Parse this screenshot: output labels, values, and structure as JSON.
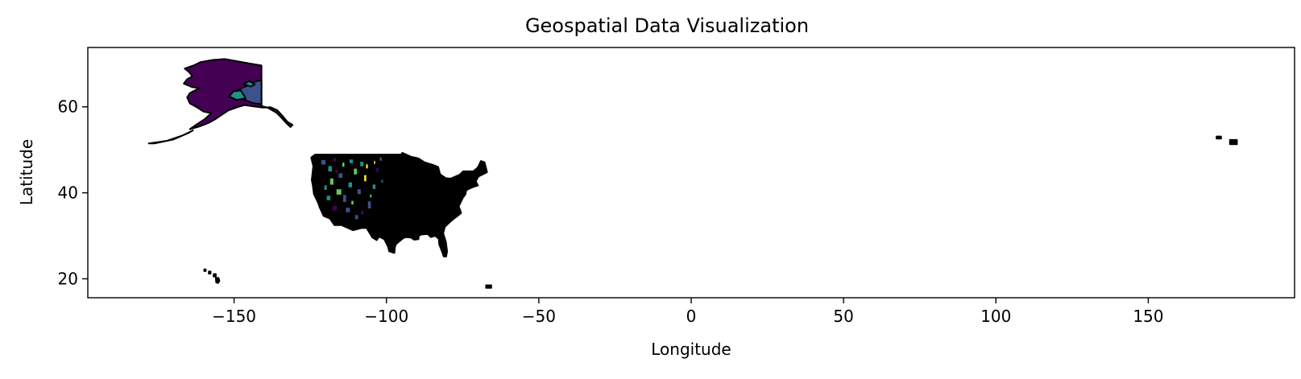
{
  "chart_data": {
    "type": "map",
    "title": "Geospatial Data Visualization",
    "xlabel": "Longitude",
    "ylabel": "Latitude",
    "xlim": [
      -198,
      198
    ],
    "ylim": [
      15.6,
      73.8
    ],
    "x_ticks": [
      -150,
      -100,
      -50,
      0,
      50,
      100,
      150
    ],
    "x_tick_labels": [
      "−150",
      "−100",
      "−50",
      "0",
      "50",
      "100",
      "150"
    ],
    "y_ticks": [
      20,
      40,
      60
    ],
    "y_tick_labels": [
      "20",
      "40",
      "60"
    ],
    "grid": false,
    "colormap": [
      "#440154",
      "#3b528b",
      "#21918c",
      "#5ec962",
      "#fde725"
    ],
    "edge_color": "#000000",
    "regions": [
      {
        "name": "Alaska",
        "fill": "#440154",
        "outline": [
          [
            -141,
            69.6
          ],
          [
            -141,
            60.2
          ],
          [
            -139,
            59.8
          ],
          [
            -136,
            58.6
          ],
          [
            -134.5,
            57.5
          ],
          [
            -133,
            56.3
          ],
          [
            -131.5,
            55.3
          ],
          [
            -130.8,
            55.8
          ],
          [
            -132.5,
            56.5
          ],
          [
            -134,
            57.8
          ],
          [
            -135.8,
            59.2
          ],
          [
            -138,
            59.9
          ],
          [
            -140.5,
            59.8
          ],
          [
            -143.5,
            60.1
          ],
          [
            -146.5,
            60.4
          ],
          [
            -149,
            59.9
          ],
          [
            -151.8,
            59.2
          ],
          [
            -153.5,
            58.4
          ],
          [
            -156,
            57.2
          ],
          [
            -158.5,
            56.2
          ],
          [
            -161.5,
            55.4
          ],
          [
            -164.5,
            54.8
          ],
          [
            -162.5,
            55.8
          ],
          [
            -159.5,
            57.2
          ],
          [
            -157.5,
            58.5
          ],
          [
            -160,
            58.9
          ],
          [
            -162,
            59.8
          ],
          [
            -164.5,
            60.8
          ],
          [
            -165.4,
            62.2
          ],
          [
            -164.5,
            63.2
          ],
          [
            -161.5,
            64.3
          ],
          [
            -163.8,
            64.6
          ],
          [
            -166.5,
            65.4
          ],
          [
            -165.4,
            66.4
          ],
          [
            -163.7,
            67.1
          ],
          [
            -164.8,
            68.1
          ],
          [
            -166.2,
            68.9
          ],
          [
            -163,
            69.7
          ],
          [
            -161,
            70.4
          ],
          [
            -157,
            70.9
          ],
          [
            -153,
            71.1
          ],
          [
            -149,
            70.6
          ],
          [
            -145,
            70.1
          ],
          [
            -141,
            69.6
          ]
        ]
      },
      {
        "name": "Alaska interior",
        "fill": "#3b528b",
        "outline": [
          [
            -141,
            66.2
          ],
          [
            -141,
            60.6
          ],
          [
            -144,
            60.9
          ],
          [
            -146.5,
            61.6
          ],
          [
            -149,
            62.2
          ],
          [
            -151,
            62.8
          ],
          [
            -148,
            64.2
          ],
          [
            -145,
            65.1
          ],
          [
            -143,
            65.9
          ],
          [
            -141,
            66.2
          ]
        ]
      },
      {
        "name": "Alaska region",
        "fill": "#21918c",
        "outline": [
          [
            -147.8,
            63.8
          ],
          [
            -146.2,
            62
          ],
          [
            -149.2,
            61.6
          ],
          [
            -151.6,
            62.4
          ],
          [
            -150.2,
            63.6
          ],
          [
            -147.8,
            63.8
          ]
        ]
      },
      {
        "name": "Alaska region",
        "fill": "#21918c",
        "outline": [
          [
            -145,
            66
          ],
          [
            -143.2,
            65.2
          ],
          [
            -144.6,
            64.7
          ],
          [
            -146.8,
            65.3
          ],
          [
            -145,
            66
          ]
        ]
      },
      {
        "name": "Aleutian chain",
        "fill": "#000000",
        "outline": [
          [
            -178,
            51.5
          ],
          [
            -172,
            52.1
          ],
          [
            -167,
            53.3
          ],
          [
            -163.5,
            54.5
          ],
          [
            -165,
            53.9
          ],
          [
            -170,
            52.4
          ],
          [
            -176,
            51.5
          ],
          [
            -178,
            51.5
          ]
        ]
      },
      {
        "name": "Contiguous US",
        "fill": "#000000",
        "outline": [
          [
            -123.4,
            48.9
          ],
          [
            -95.2,
            48.9
          ],
          [
            -94.8,
            49.3
          ],
          [
            -92,
            48.4
          ],
          [
            -89.5,
            48
          ],
          [
            -87.5,
            47.1
          ],
          [
            -84.7,
            46.5
          ],
          [
            -83,
            46
          ],
          [
            -82.4,
            44.3
          ],
          [
            -80.5,
            43.4
          ],
          [
            -79,
            43.3
          ],
          [
            -76,
            44.2
          ],
          [
            -74.8,
            45
          ],
          [
            -71.5,
            45
          ],
          [
            -70,
            45.9
          ],
          [
            -69,
            47.4
          ],
          [
            -67.8,
            47.1
          ],
          [
            -67,
            44.8
          ],
          [
            -69.8,
            43.8
          ],
          [
            -70.7,
            42.7
          ],
          [
            -70,
            41.7
          ],
          [
            -71.8,
            41.3
          ],
          [
            -73.8,
            40.6
          ],
          [
            -74.1,
            39.6
          ],
          [
            -74.9,
            38.9
          ],
          [
            -75.9,
            37.4
          ],
          [
            -76.3,
            36.9
          ],
          [
            -75.5,
            35.3
          ],
          [
            -76.5,
            34.7
          ],
          [
            -78,
            33.9
          ],
          [
            -79.2,
            33.2
          ],
          [
            -80.8,
            32.1
          ],
          [
            -81.4,
            30.6
          ],
          [
            -80.5,
            28.6
          ],
          [
            -80.1,
            26.4
          ],
          [
            -80.4,
            25.2
          ],
          [
            -81.2,
            25.2
          ],
          [
            -81.8,
            26.4
          ],
          [
            -82.7,
            28
          ],
          [
            -82.8,
            29.3
          ],
          [
            -84,
            30
          ],
          [
            -85.4,
            29.7
          ],
          [
            -86.5,
            30.4
          ],
          [
            -88.5,
            30.3
          ],
          [
            -89.4,
            30
          ],
          [
            -89.5,
            29.2
          ],
          [
            -90.9,
            29.1
          ],
          [
            -92,
            29.6
          ],
          [
            -93.8,
            29.7
          ],
          [
            -94.8,
            29.3
          ],
          [
            -96.8,
            28.1
          ],
          [
            -97.2,
            27.5
          ],
          [
            -97.4,
            26
          ],
          [
            -99.1,
            26.4
          ],
          [
            -99.5,
            27.5
          ],
          [
            -100.7,
            29.2
          ],
          [
            -102.4,
            29.8
          ],
          [
            -103.2,
            29
          ],
          [
            -104.6,
            29.6
          ],
          [
            -106.5,
            31.8
          ],
          [
            -108.2,
            31.8
          ],
          [
            -111,
            31.3
          ],
          [
            -114.8,
            32.5
          ],
          [
            -117.1,
            32.5
          ],
          [
            -118.5,
            34
          ],
          [
            -120.6,
            34.6
          ],
          [
            -121.9,
            36.6
          ],
          [
            -122.5,
            37.8
          ],
          [
            -123.8,
            39.7
          ],
          [
            -124.2,
            41.8
          ],
          [
            -124.5,
            43
          ],
          [
            -124,
            46.2
          ],
          [
            -124.7,
            48.2
          ],
          [
            -123.4,
            48.9
          ]
        ]
      },
      {
        "name": "Hawaii",
        "fill": "#000000",
        "outline": [
          [
            -159.8,
            22.2
          ],
          [
            -159.3,
            22.2
          ],
          [
            -159.3,
            21.8
          ],
          [
            -159.8,
            21.8
          ],
          [
            -159.8,
            22.2
          ]
        ]
      },
      {
        "name": "Hawaii",
        "fill": "#000000",
        "outline": [
          [
            -158.3,
            21.7
          ],
          [
            -157.7,
            21.7
          ],
          [
            -157.7,
            21.2
          ],
          [
            -158.3,
            21.2
          ],
          [
            -158.3,
            21.7
          ]
        ]
      },
      {
        "name": "Hawaii",
        "fill": "#000000",
        "outline": [
          [
            -156.7,
            21.1
          ],
          [
            -156,
            21.1
          ],
          [
            -156,
            20.5
          ],
          [
            -156.7,
            20.5
          ],
          [
            -156.7,
            21.1
          ]
        ]
      },
      {
        "name": "Hawaii",
        "fill": "#000000",
        "outline": [
          [
            -156,
            20.2
          ],
          [
            -155.1,
            20.2
          ],
          [
            -154.8,
            19.5
          ],
          [
            -155.3,
            19
          ],
          [
            -155.9,
            19.2
          ],
          [
            -156,
            20.2
          ]
        ]
      },
      {
        "name": "Puerto Rico",
        "fill": "#000000",
        "outline": [
          [
            -67.3,
            18.5
          ],
          [
            -65.6,
            18.5
          ],
          [
            -65.6,
            17.9
          ],
          [
            -67.3,
            17.9
          ],
          [
            -67.3,
            18.5
          ]
        ]
      },
      {
        "name": "Western Aleutians",
        "fill": "#000000",
        "outline": [
          [
            172.4,
            53.1
          ],
          [
            173.9,
            53.1
          ],
          [
            173.9,
            52.6
          ],
          [
            172.4,
            52.6
          ],
          [
            172.4,
            53.1
          ]
        ]
      },
      {
        "name": "Western Aleutians",
        "fill": "#000000",
        "outline": [
          [
            176.8,
            52.3
          ],
          [
            179.1,
            52.3
          ],
          [
            179.1,
            51.3
          ],
          [
            176.8,
            51.3
          ],
          [
            176.8,
            52.3
          ]
        ]
      }
    ],
    "cells": [
      {
        "lon": -121.5,
        "lat": 46.5,
        "w": 1.6,
        "h": 1.2,
        "fill": "#3b528b"
      },
      {
        "lon": -119.2,
        "lat": 44.9,
        "w": 1.4,
        "h": 1.4,
        "fill": "#21918c"
      },
      {
        "lon": -117.6,
        "lat": 47.2,
        "w": 1.2,
        "h": 1.0,
        "fill": "#440154"
      },
      {
        "lon": -115.8,
        "lat": 43.4,
        "w": 1.5,
        "h": 1.2,
        "fill": "#3b528b"
      },
      {
        "lon": -118.6,
        "lat": 41.8,
        "w": 1.3,
        "h": 1.6,
        "fill": "#5ec962"
      },
      {
        "lon": -116.5,
        "lat": 39.5,
        "w": 1.8,
        "h": 1.4,
        "fill": "#5ec962"
      },
      {
        "lon": -119.7,
        "lat": 38.2,
        "w": 1.4,
        "h": 1.2,
        "fill": "#21918c"
      },
      {
        "lon": -114.3,
        "lat": 37.8,
        "w": 1.2,
        "h": 1.8,
        "fill": "#3b528b"
      },
      {
        "lon": -117.8,
        "lat": 35.8,
        "w": 1.6,
        "h": 1.2,
        "fill": "#440154"
      },
      {
        "lon": -112.6,
        "lat": 41.2,
        "w": 1.4,
        "h": 1.3,
        "fill": "#21918c"
      },
      {
        "lon": -110.8,
        "lat": 44.2,
        "w": 1.2,
        "h": 1.5,
        "fill": "#5ec962"
      },
      {
        "lon": -108.7,
        "lat": 46.1,
        "w": 1.3,
        "h": 1.2,
        "fill": "#21918c"
      },
      {
        "lon": -107.4,
        "lat": 42.6,
        "w": 0.9,
        "h": 1.6,
        "fill": "#fde725"
      },
      {
        "lon": -106.8,
        "lat": 45.6,
        "w": 0.8,
        "h": 1.1,
        "fill": "#fde725"
      },
      {
        "lon": -109.6,
        "lat": 39.6,
        "w": 1.3,
        "h": 1.3,
        "fill": "#3b528b"
      },
      {
        "lon": -113.4,
        "lat": 35.4,
        "w": 1.5,
        "h": 1.2,
        "fill": "#3b528b"
      },
      {
        "lon": -110.4,
        "lat": 33.8,
        "w": 1.2,
        "h": 1.1,
        "fill": "#3b528b"
      },
      {
        "lon": -106.2,
        "lat": 36.3,
        "w": 1.2,
        "h": 1.8,
        "fill": "#3b528b"
      },
      {
        "lon": -104.6,
        "lat": 40.8,
        "w": 1.1,
        "h": 1.2,
        "fill": "#21918c"
      },
      {
        "lon": -103.5,
        "lat": 44.8,
        "w": 1.0,
        "h": 1.0,
        "fill": "#440154"
      },
      {
        "lon": -102.3,
        "lat": 47.4,
        "w": 0.9,
        "h": 0.9,
        "fill": "#3b528b"
      },
      {
        "lon": -104.2,
        "lat": 46.6,
        "w": 0.6,
        "h": 0.9,
        "fill": "#fde725"
      },
      {
        "lon": -112.2,
        "lat": 46.8,
        "w": 1.3,
        "h": 1.0,
        "fill": "#21918c"
      },
      {
        "lon": -114.6,
        "lat": 46.0,
        "w": 0.9,
        "h": 1.1,
        "fill": "#5ec962"
      },
      {
        "lon": -120.5,
        "lat": 40.6,
        "w": 1.0,
        "h": 1.2,
        "fill": "#21918c"
      },
      {
        "lon": -111.6,
        "lat": 37.2,
        "w": 0.9,
        "h": 1.0,
        "fill": "#5ec962"
      },
      {
        "lon": -108.5,
        "lat": 34.9,
        "w": 1.1,
        "h": 1.0,
        "fill": "#440154"
      },
      {
        "lon": -105.6,
        "lat": 38.8,
        "w": 0.9,
        "h": 0.9,
        "fill": "#21918c"
      },
      {
        "lon": -101.8,
        "lat": 42.3,
        "w": 0.8,
        "h": 0.8,
        "fill": "#3b528b"
      },
      {
        "lon": -116.9,
        "lat": 44.5,
        "w": 1.0,
        "h": 0.9,
        "fill": "#440154"
      }
    ]
  }
}
